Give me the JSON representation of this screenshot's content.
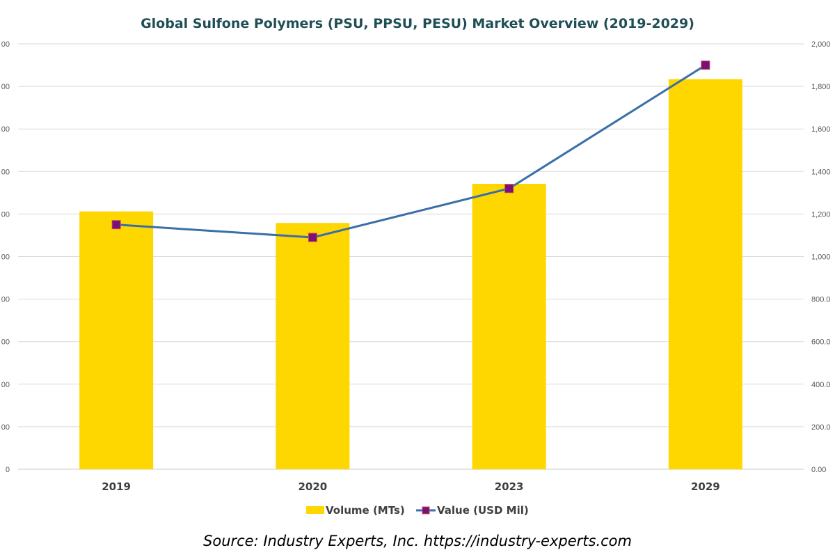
{
  "chart_data": {
    "type": "bar+line",
    "title": "Global Sulfone Polymers (PSU, PPSU, PESU) Market Overview (2019-2029)",
    "categories": [
      "2019",
      "2020",
      "2023",
      "2029"
    ],
    "series": [
      {
        "name": "Volume (MTs)",
        "type": "bar",
        "axis": "left",
        "color": "#FFD700",
        "values_note": "left-axis labels clipped; values given as fraction of left-axis max",
        "values": [
          0.606,
          0.579,
          0.671,
          0.917
        ]
      },
      {
        "name": "Value (USD Mil)",
        "type": "line",
        "axis": "right",
        "color": "#3A6FA8",
        "marker_color": "#7B0F7B",
        "marker_edge": "#C0504D",
        "values": [
          1150,
          1090,
          1320,
          1900
        ]
      }
    ],
    "left_axis": {
      "ylim_fraction": [
        0,
        1
      ],
      "tick_labels": [
        "0",
        "00",
        "00",
        "00",
        "00",
        "00",
        "00",
        "00",
        "00",
        "00",
        "00"
      ]
    },
    "right_axis": {
      "ylim": [
        0,
        2000
      ],
      "tick_labels": [
        "0.00",
        "200.0",
        "400.0",
        "600.0",
        "800.0",
        "1,000",
        "1,200",
        "1,400",
        "1,600",
        "1,800",
        "2,000"
      ]
    },
    "grid": true,
    "legend": "bottom",
    "source": "Source: Industry Experts, Inc. https://industry-experts.com"
  }
}
